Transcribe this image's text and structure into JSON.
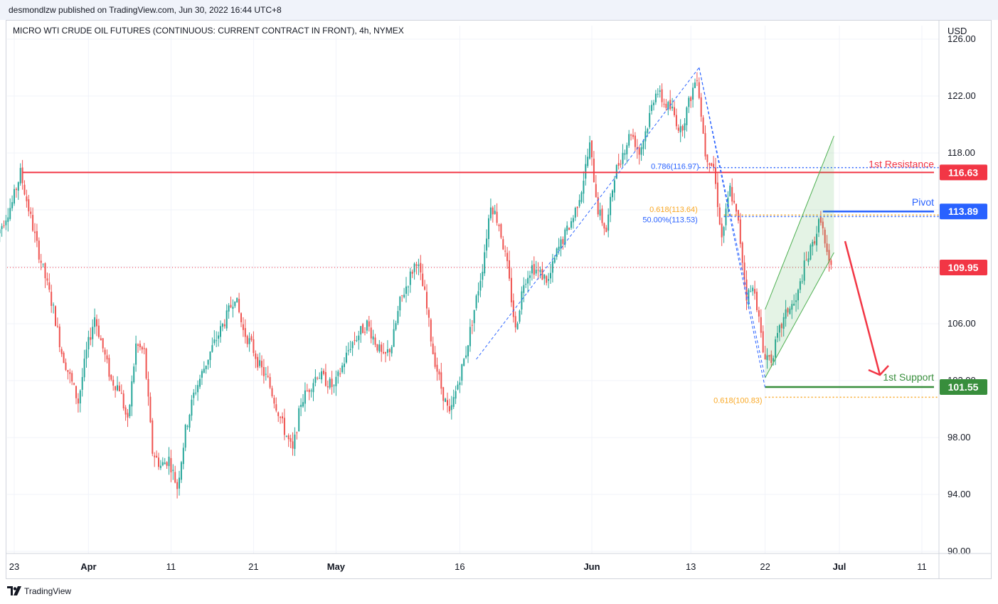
{
  "header": {
    "publish_line": "desmondlzw published on TradingView.com, Jun 30, 2022 16:44 UTC+8"
  },
  "footer": {
    "brand": "TradingView"
  },
  "chart_data": {
    "type": "candlestick",
    "title": "MICRO WTI CRUDE OIL FUTURES (CONTINUOUS: CURRENT CONTRACT IN FRONT), 4h, NYMEX",
    "currency": "USD",
    "ylim": [
      90,
      126
    ],
    "y_ticks": [
      "90.00",
      "94.00",
      "98.00",
      "102.00",
      "106.00",
      "110.00",
      "114.00",
      "118.00",
      "122.00",
      "126.00"
    ],
    "x_ticks": [
      {
        "label": "23",
        "date": "2022-03-23"
      },
      {
        "label": "Apr",
        "date": "2022-04-01"
      },
      {
        "label": "11",
        "date": "2022-04-11"
      },
      {
        "label": "21",
        "date": "2022-04-21"
      },
      {
        "label": "May",
        "date": "2022-05-01"
      },
      {
        "label": "16",
        "date": "2022-05-16"
      },
      {
        "label": "Jun",
        "date": "2022-06-01"
      },
      {
        "label": "13",
        "date": "2022-06-13"
      },
      {
        "label": "22",
        "date": "2022-06-22"
      },
      {
        "label": "Jul",
        "date": "2022-07-01"
      },
      {
        "label": "11",
        "date": "2022-07-11"
      }
    ],
    "price_path": [
      {
        "d": "2022-03-21",
        "p": 112.0
      },
      {
        "d": "2022-03-23",
        "p": 114.5
      },
      {
        "d": "2022-03-24",
        "p": 116.6
      },
      {
        "d": "2022-03-26",
        "p": 111.5
      },
      {
        "d": "2022-03-28",
        "p": 107.0
      },
      {
        "d": "2022-03-29",
        "p": 104.0
      },
      {
        "d": "2022-03-31",
        "p": 100.5
      },
      {
        "d": "2022-04-01",
        "p": 104.0
      },
      {
        "d": "2022-04-02",
        "p": 106.5
      },
      {
        "d": "2022-04-04",
        "p": 102.0
      },
      {
        "d": "2022-04-05",
        "p": 101.5
      },
      {
        "d": "2022-04-06",
        "p": 99.0
      },
      {
        "d": "2022-04-07",
        "p": 104.5
      },
      {
        "d": "2022-04-08",
        "p": 104.0
      },
      {
        "d": "2022-04-09",
        "p": 97.0
      },
      {
        "d": "2022-04-10",
        "p": 96.0
      },
      {
        "d": "2022-04-11",
        "p": 96.5
      },
      {
        "d": "2022-04-12",
        "p": 94.5
      },
      {
        "d": "2022-04-13",
        "p": 98.5
      },
      {
        "d": "2022-04-14",
        "p": 101.0
      },
      {
        "d": "2022-04-16",
        "p": 104.0
      },
      {
        "d": "2022-04-18",
        "p": 106.5
      },
      {
        "d": "2022-04-19",
        "p": 108.0
      },
      {
        "d": "2022-04-20",
        "p": 105.5
      },
      {
        "d": "2022-04-21",
        "p": 104.5
      },
      {
        "d": "2022-04-22",
        "p": 103.0
      },
      {
        "d": "2022-04-23",
        "p": 102.0
      },
      {
        "d": "2022-04-25",
        "p": 98.5
      },
      {
        "d": "2022-04-26",
        "p": 97.0
      },
      {
        "d": "2022-04-27",
        "p": 100.5
      },
      {
        "d": "2022-04-29",
        "p": 102.5
      },
      {
        "d": "2022-05-01",
        "p": 101.5
      },
      {
        "d": "2022-05-03",
        "p": 104.5
      },
      {
        "d": "2022-05-05",
        "p": 106.0
      },
      {
        "d": "2022-05-07",
        "p": 103.5
      },
      {
        "d": "2022-05-08",
        "p": 104.5
      },
      {
        "d": "2022-05-09",
        "p": 107.5
      },
      {
        "d": "2022-05-11",
        "p": 110.5
      },
      {
        "d": "2022-05-12",
        "p": 108.0
      },
      {
        "d": "2022-05-13",
        "p": 104.0
      },
      {
        "d": "2022-05-14",
        "p": 101.5
      },
      {
        "d": "2022-05-15",
        "p": 99.5
      },
      {
        "d": "2022-05-17",
        "p": 104.0
      },
      {
        "d": "2022-05-19",
        "p": 110.0
      },
      {
        "d": "2022-05-20",
        "p": 114.5
      },
      {
        "d": "2022-05-21",
        "p": 113.0
      },
      {
        "d": "2022-05-22",
        "p": 110.0
      },
      {
        "d": "2022-05-23",
        "p": 105.5
      },
      {
        "d": "2022-05-24",
        "p": 109.0
      },
      {
        "d": "2022-05-25",
        "p": 110.0
      },
      {
        "d": "2022-05-27",
        "p": 109.0
      },
      {
        "d": "2022-05-28",
        "p": 111.0
      },
      {
        "d": "2022-05-30",
        "p": 113.5
      },
      {
        "d": "2022-05-31",
        "p": 115.5
      },
      {
        "d": "2022-06-01",
        "p": 118.5
      },
      {
        "d": "2022-06-02",
        "p": 114.0
      },
      {
        "d": "2022-06-03",
        "p": 112.5
      },
      {
        "d": "2022-06-04",
        "p": 116.5
      },
      {
        "d": "2022-06-05",
        "p": 118.0
      },
      {
        "d": "2022-06-06",
        "p": 119.5
      },
      {
        "d": "2022-06-07",
        "p": 118.0
      },
      {
        "d": "2022-06-08",
        "p": 120.0
      },
      {
        "d": "2022-06-09",
        "p": 122.5
      },
      {
        "d": "2022-06-10",
        "p": 121.5
      },
      {
        "d": "2022-06-11",
        "p": 121.0
      },
      {
        "d": "2022-06-12",
        "p": 119.5
      },
      {
        "d": "2022-06-13",
        "p": 121.5
      },
      {
        "d": "2022-06-14",
        "p": 123.5
      },
      {
        "d": "2022-06-15",
        "p": 118.0
      },
      {
        "d": "2022-06-16",
        "p": 117.0
      },
      {
        "d": "2022-06-17",
        "p": 112.0
      },
      {
        "d": "2022-06-18",
        "p": 115.5
      },
      {
        "d": "2022-06-19",
        "p": 113.0
      },
      {
        "d": "2022-06-20",
        "p": 108.0
      },
      {
        "d": "2022-06-21",
        "p": 108.5
      },
      {
        "d": "2022-06-22",
        "p": 104.0
      },
      {
        "d": "2022-06-23",
        "p": 103.5
      },
      {
        "d": "2022-06-24",
        "p": 105.5
      },
      {
        "d": "2022-06-25",
        "p": 107.0
      },
      {
        "d": "2022-06-26",
        "p": 107.5
      },
      {
        "d": "2022-06-27",
        "p": 110.0
      },
      {
        "d": "2022-06-28",
        "p": 111.5
      },
      {
        "d": "2022-06-29",
        "p": 113.5
      },
      {
        "d": "2022-06-29T12",
        "p": 111.5
      },
      {
        "d": "2022-06-30",
        "p": 109.95
      }
    ],
    "levels": [
      {
        "name": "1st Resistance",
        "value": 116.63,
        "value_label": "116.63",
        "color": "#f23645"
      },
      {
        "name": "Pivot",
        "value": 113.89,
        "value_label": "113.89",
        "color": "#2962ff"
      },
      {
        "name": "1st Support",
        "value": 101.55,
        "value_label": "101.55",
        "color": "#388e3c"
      },
      {
        "name": "last",
        "value": 109.95,
        "value_label": "109.95",
        "color": "#f23645"
      }
    ],
    "fib_labels": [
      {
        "text": "0.786(116.97)",
        "value": 116.97,
        "color": "#2962ff"
      },
      {
        "text": "0.618(113.64)",
        "value": 113.64,
        "color": "#f9a825"
      },
      {
        "text": "50.00%(113.53)",
        "value": 113.53,
        "color": "#2962ff"
      },
      {
        "text": "0.618(100.83)",
        "value": 100.83,
        "color": "#f9a825"
      }
    ],
    "colors": {
      "up": "#26a69a",
      "down": "#ef5350",
      "grid": "#f0f3fa",
      "axis_text": "#131722"
    }
  }
}
